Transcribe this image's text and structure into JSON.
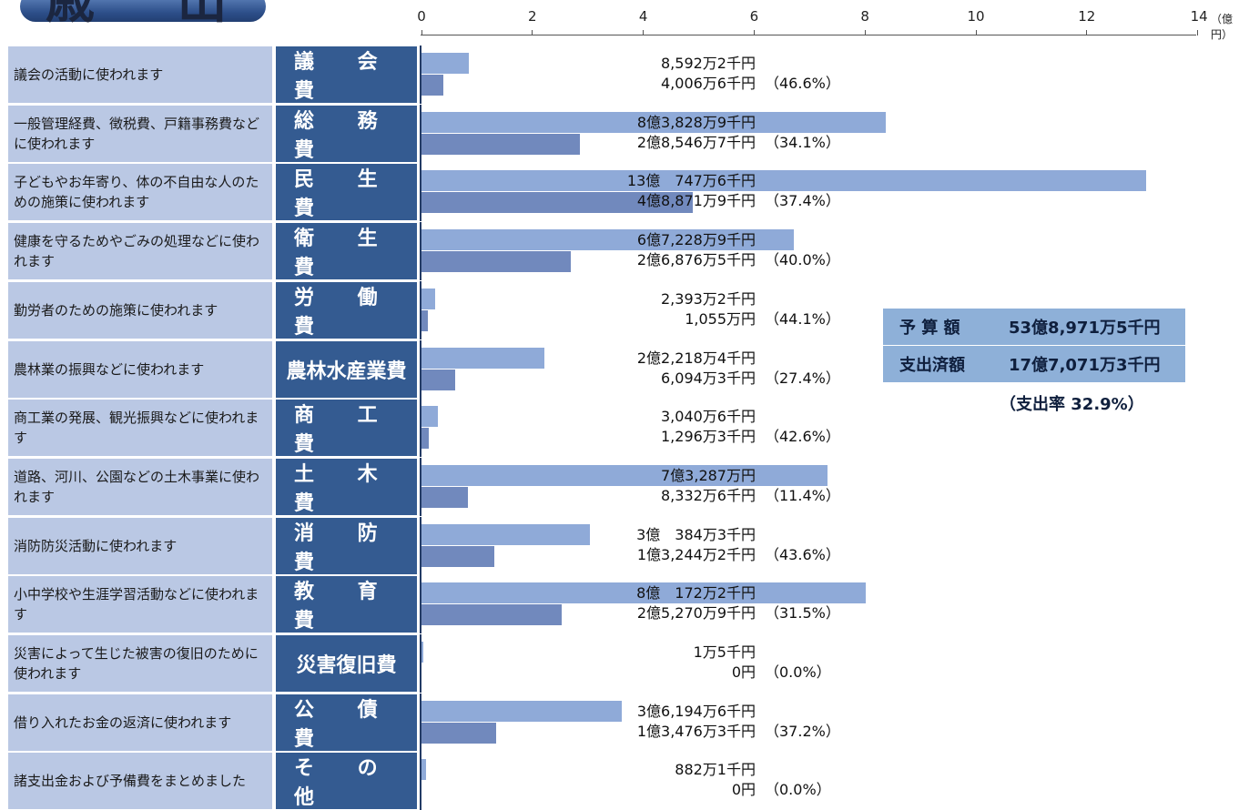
{
  "title": "歳　出",
  "chart_data": {
    "type": "bar",
    "title": "歳　出",
    "unit": "（億円）",
    "xlim": [
      0,
      14
    ],
    "xticks": [
      "0",
      "2",
      "4",
      "6",
      "8",
      "10",
      "12",
      "14"
    ],
    "colors": {
      "budget": "#8faad8",
      "spent": "#7189bd",
      "category": "#345b91",
      "description": "#bac8e4"
    },
    "categories": [
      {
        "name": "議 会 費",
        "desc": "議会の活動に使われます",
        "budget": 0.86,
        "spent": 0.4,
        "budget_label": "8,592万2千円",
        "spent_label": "4,006万6千円",
        "rate": "（46.6%）"
      },
      {
        "name": "総 務 費",
        "desc": "一般管理経費、徴税費、戸籍事務費などに使われます",
        "budget": 8.38,
        "spent": 2.85,
        "budget_label": "8億3,828万9千円",
        "spent_label": "2億8,546万7千円",
        "rate": "（34.1%）"
      },
      {
        "name": "民 生 費",
        "desc": "子どもやお年寄り、体の不自由な人のための施策に使われます",
        "budget": 13.07,
        "spent": 4.89,
        "budget_label": "13億　747万6千円",
        "spent_label": "4億8,871万9千円",
        "rate": "（37.4%）"
      },
      {
        "name": "衛 生 費",
        "desc": "健康を守るためやごみの処理などに使われます",
        "budget": 6.72,
        "spent": 2.69,
        "budget_label": "6億7,228万9千円",
        "spent_label": "2億6,876万5千円",
        "rate": "（40.0%）"
      },
      {
        "name": "労 働 費",
        "desc": "勤労者のための施策に使われます",
        "budget": 0.24,
        "spent": 0.11,
        "budget_label": "2,393万2千円",
        "spent_label": "1,055万円",
        "rate": "（44.1%）"
      },
      {
        "name": "農林水産業費",
        "desc": "農林業の振興などに使われます",
        "budget": 2.22,
        "spent": 0.61,
        "budget_label": "2億2,218万4千円",
        "spent_label": "6,094万3千円",
        "rate": "（27.4%）"
      },
      {
        "name": "商 工 費",
        "desc": "商工業の発展、観光振興などに使われます",
        "budget": 0.3,
        "spent": 0.13,
        "budget_label": "3,040万6千円",
        "spent_label": "1,296万3千円",
        "rate": "（42.6%）"
      },
      {
        "name": "土 木 費",
        "desc": "道路、河川、公園などの土木事業に使われます",
        "budget": 7.33,
        "spent": 0.83,
        "budget_label": "7億3,287万円",
        "spent_label": "8,332万6千円",
        "rate": "（11.4%）"
      },
      {
        "name": "消 防 費",
        "desc": "消防防災活動に使われます",
        "budget": 3.04,
        "spent": 1.32,
        "budget_label": "3億　384万3千円",
        "spent_label": "1億3,244万2千円",
        "rate": "（43.6%）"
      },
      {
        "name": "教 育 費",
        "desc": "小中学校や生涯学習活動などに使われます",
        "budget": 8.02,
        "spent": 2.53,
        "budget_label": "8億　172万2千円",
        "spent_label": "2億5,270万9千円",
        "rate": "（31.5%）"
      },
      {
        "name": "災害復旧費",
        "desc": "災害によって生じた被害の復旧のために使われます",
        "budget": 0.0015,
        "spent": 0,
        "budget_label": "1万5千円",
        "spent_label": "0円",
        "rate": "（0.0%）"
      },
      {
        "name": "公 債 費",
        "desc": "借り入れたお金の返済に使われます",
        "budget": 3.62,
        "spent": 1.35,
        "budget_label": "3億6,194万6千円",
        "spent_label": "1億3,476万3千円",
        "rate": "（37.2%）"
      },
      {
        "name": "そ の 他",
        "desc": "諸支出金および予備費をまとめました",
        "budget": 0.088,
        "spent": 0,
        "budget_label": "882万1千円",
        "spent_label": "0円",
        "rate": "（0.0%）"
      }
    ]
  },
  "summary": {
    "budget_label": "予 算 額",
    "budget_value": "53億8,971万5千円",
    "spent_label": "支出済額",
    "spent_value": "17億7,071万3千円",
    "rate_text": "（支出率 32.9%）"
  }
}
